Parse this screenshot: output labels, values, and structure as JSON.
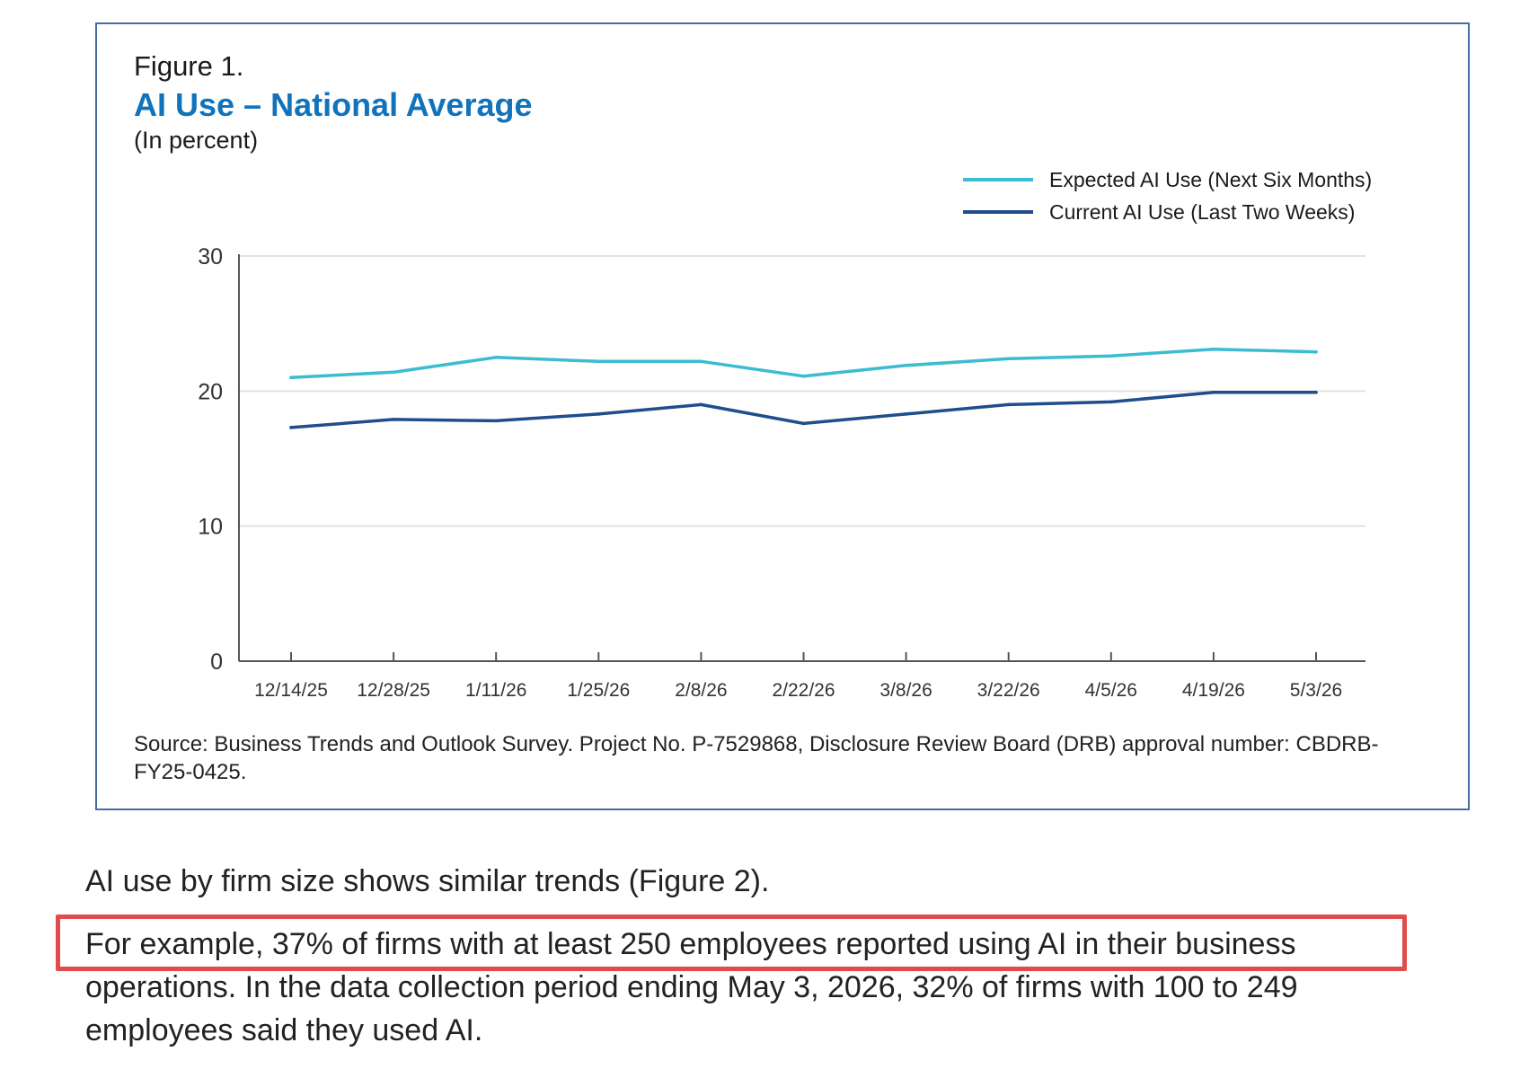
{
  "figure": {
    "label": "Figure 1.",
    "title": "AI Use – National Average",
    "subtitle": "(In percent)",
    "source_note": "Source: Business Trends and Outlook Survey. Project No. P-7529868, Disclosure Review Board (DRB) approval number: CBDRB-FY25-0425."
  },
  "chart_data": {
    "type": "line",
    "title": "AI Use – National Average",
    "subtitle": "(In percent)",
    "xlabel": "",
    "ylabel": "",
    "categories": [
      "12/14/25",
      "12/28/25",
      "1/11/26",
      "1/25/26",
      "2/8/26",
      "2/22/26",
      "3/8/26",
      "3/22/26",
      "4/5/26",
      "4/19/26",
      "5/3/26"
    ],
    "ylim": [
      0,
      30
    ],
    "yticks": [
      0,
      10,
      20,
      30
    ],
    "grid": true,
    "legend_position": "top-right",
    "series": [
      {
        "name": "Expected AI Use (Next Six Months)",
        "color": "#3bbcd0",
        "values": [
          21.0,
          21.4,
          22.5,
          22.2,
          22.2,
          21.1,
          21.9,
          22.4,
          22.6,
          23.1,
          22.9
        ]
      },
      {
        "name": "Current AI Use (Last Two Weeks)",
        "color": "#1f4e8c",
        "values": [
          17.3,
          17.9,
          17.8,
          18.3,
          19.0,
          17.6,
          18.3,
          19.0,
          19.2,
          19.9,
          19.9
        ]
      }
    ]
  },
  "body": {
    "paragraph1": "AI use by firm size shows similar trends (Figure 2).",
    "paragraph2": "For example, 37% of firms with at least 250 employees reported using AI in their business operations. In the data collection period ending May 3, 2026, 32% of firms with 100 to 249 employees said they used AI."
  },
  "colors": {
    "title_blue": "#1173bb",
    "frame_border": "#4a6aa5",
    "highlight_red": "#e14b4b"
  }
}
